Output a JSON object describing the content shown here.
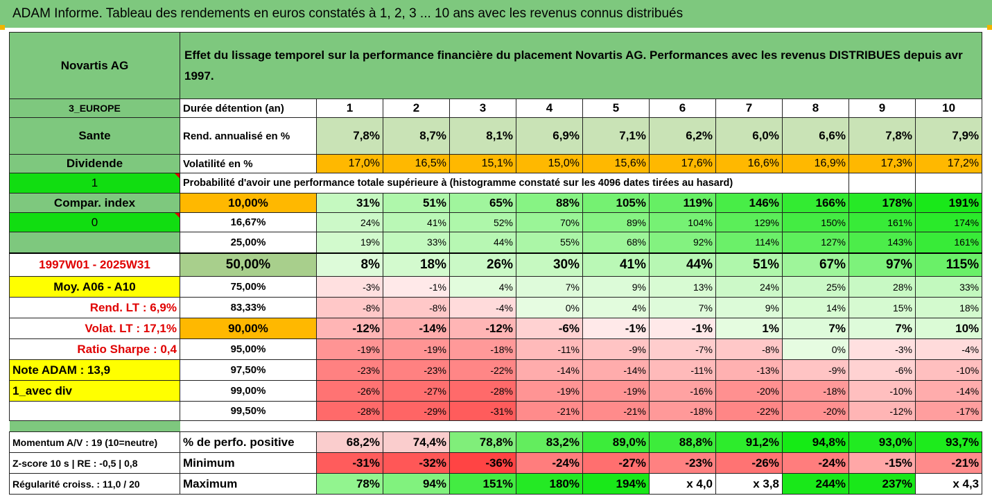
{
  "title": "ADAM Informe. Tableau des rendements en euros constatés à 1, 2, 3 ... 10 ans avec les revenus connus distribués",
  "company": "Novartis AG",
  "header_text": "Effet du lissage temporel sur la performance financière du placement Novartis AG. Performances avec les revenus DISTRIBUES depuis avr 1997.",
  "side": {
    "region": "3_EUROPE",
    "sector": "Sante",
    "dividende": "Dividende",
    "val1": "1",
    "compar": "Compar. index",
    "val0": "0",
    "period": "1997W01 - 2025W31",
    "moy": "Moy. A06 - A10",
    "rend": "Rend. LT :   6,9%",
    "volat": "Volat. LT :   17,1%",
    "sharpe": "Ratio Sharpe :   0,4",
    "note": "Note ADAM : 13,9",
    "avec_div": "1_avec div",
    "momentum": "Momentum A/V : 19 (10=neutre)",
    "zscore": "Z-score 10 s  |  RE : -0,5  |  0,8",
    "regularite": "Régularité croiss. : 11,0 / 20"
  },
  "row_labels": {
    "duree": "Durée détention (an)",
    "rend": "Rend. annualisé en %",
    "vol": "Volatilité en %",
    "proba": "Probabilité d'avoir une performance totale supérieure à (histogramme constaté sur les 4096 dates tirées au hasard)",
    "perf_pos": "% de perfo. positive",
    "minimum": "Minimum",
    "maximum": "Maximum"
  },
  "years": [
    "1",
    "2",
    "3",
    "4",
    "5",
    "6",
    "7",
    "8",
    "9",
    "10"
  ],
  "rend": [
    "7,8%",
    "8,7%",
    "8,1%",
    "6,9%",
    "7,1%",
    "6,2%",
    "6,0%",
    "6,6%",
    "7,8%",
    "7,9%"
  ],
  "vol": [
    "17,0%",
    "16,5%",
    "15,1%",
    "15,0%",
    "15,6%",
    "17,6%",
    "16,6%",
    "16,9%",
    "17,3%",
    "17,2%"
  ],
  "quantiles": [
    {
      "p": "10,00%",
      "v": [
        "31%",
        "51%",
        "65%",
        "88%",
        "105%",
        "119%",
        "146%",
        "166%",
        "178%",
        "191%"
      ]
    },
    {
      "p": "16,67%",
      "v": [
        "24%",
        "41%",
        "52%",
        "70%",
        "89%",
        "104%",
        "129%",
        "150%",
        "161%",
        "174%"
      ]
    },
    {
      "p": "25,00%",
      "v": [
        "19%",
        "33%",
        "44%",
        "55%",
        "68%",
        "92%",
        "114%",
        "127%",
        "143%",
        "161%"
      ]
    },
    {
      "p": "50,00%",
      "v": [
        "8%",
        "18%",
        "26%",
        "30%",
        "41%",
        "44%",
        "51%",
        "67%",
        "97%",
        "115%"
      ]
    },
    {
      "p": "75,00%",
      "v": [
        "-3%",
        "-1%",
        "4%",
        "7%",
        "9%",
        "13%",
        "24%",
        "25%",
        "28%",
        "33%"
      ]
    },
    {
      "p": "83,33%",
      "v": [
        "-8%",
        "-8%",
        "-4%",
        "0%",
        "4%",
        "7%",
        "9%",
        "14%",
        "15%",
        "18%"
      ]
    },
    {
      "p": "90,00%",
      "v": [
        "-12%",
        "-14%",
        "-12%",
        "-6%",
        "-1%",
        "-1%",
        "1%",
        "7%",
        "7%",
        "10%"
      ]
    },
    {
      "p": "95,00%",
      "v": [
        "-19%",
        "-19%",
        "-18%",
        "-11%",
        "-9%",
        "-7%",
        "-8%",
        "0%",
        "-3%",
        "-4%"
      ]
    },
    {
      "p": "97,50%",
      "v": [
        "-23%",
        "-23%",
        "-22%",
        "-14%",
        "-14%",
        "-11%",
        "-13%",
        "-9%",
        "-6%",
        "-10%"
      ]
    },
    {
      "p": "99,00%",
      "v": [
        "-26%",
        "-27%",
        "-28%",
        "-19%",
        "-19%",
        "-16%",
        "-20%",
        "-18%",
        "-10%",
        "-14%"
      ]
    },
    {
      "p": "99,50%",
      "v": [
        "-28%",
        "-29%",
        "-31%",
        "-21%",
        "-21%",
        "-18%",
        "-22%",
        "-20%",
        "-12%",
        "-17%"
      ]
    }
  ],
  "perf_pos": [
    "68,2%",
    "74,4%",
    "78,8%",
    "83,2%",
    "89,0%",
    "88,8%",
    "91,2%",
    "94,8%",
    "93,0%",
    "93,7%"
  ],
  "minimum": [
    "-31%",
    "-32%",
    "-36%",
    "-24%",
    "-27%",
    "-23%",
    "-26%",
    "-24%",
    "-15%",
    "-21%"
  ],
  "maximum": [
    "78%",
    "94%",
    "151%",
    "180%",
    "194%",
    "x 4,0",
    "x 3,8",
    "244%",
    "237%",
    "x 4,3"
  ],
  "colors": {
    "header_green": "#7ec87e",
    "light_green": "#c9e3b6",
    "bright_green": "#11dd11",
    "yellow": "#ffff00",
    "orange": "#ffb800",
    "red_text": "#e00000"
  }
}
